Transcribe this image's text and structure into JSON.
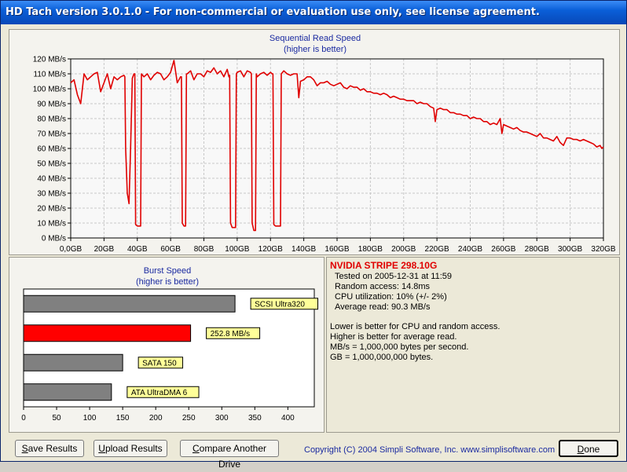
{
  "window": {
    "title": "HD Tach version 3.0.1.0  - For non-commercial or evaluation use only, see license agreement."
  },
  "sequential_chart": {
    "title_line1": "Sequential Read Speed",
    "title_line2": "(higher is better)"
  },
  "burst_chart": {
    "title_line1": "Burst Speed",
    "title_line2": "(higher is better)"
  },
  "stats": {
    "drive_name": "NVIDIA STRIPE 298.10G",
    "tested_on": "Tested on 2005-12-31 at 11:59",
    "random_access": "Random access: 14.8ms",
    "cpu": "CPU utilization: 10% (+/- 2%)",
    "average_read": "Average read: 90.3 MB/s",
    "note1": "Lower is better for CPU and random access.",
    "note2": "Higher is better for average read.",
    "note3": "MB/s = 1,000,000 bytes per second.",
    "note4": "GB = 1,000,000,000 bytes."
  },
  "buttons": {
    "save_prefix": "S",
    "save_rest": "ave Results",
    "upload_prefix": "U",
    "upload_rest": "pload Results",
    "compare_prefix": "C",
    "compare_rest": "ompare Another Drive",
    "done_prefix": "D",
    "done_rest": "one"
  },
  "footer": {
    "copyright": "Copyright (C) 2004 Simpli Software, Inc. www.simplisoftware.com"
  },
  "colors": {
    "series": "#e00000",
    "grid": "#c8c8c8",
    "gray_bar": "#808080",
    "label_bg": "#ffff99",
    "title_blue": "#1a2aa0"
  },
  "chart_data": [
    {
      "type": "line",
      "title": "Sequential Read Speed",
      "subtitle": "(higher is better)",
      "x_ticks": [
        "0,0GB",
        "20GB",
        "40GB",
        "60GB",
        "80GB",
        "100GB",
        "120GB",
        "140GB",
        "160GB",
        "180GB",
        "200GB",
        "220GB",
        "240GB",
        "260GB",
        "280GB",
        "300GB",
        "320GB"
      ],
      "y_ticks": [
        "0 MB/s",
        "10 MB/s",
        "20 MB/s",
        "30 MB/s",
        "40 MB/s",
        "50 MB/s",
        "60 MB/s",
        "70 MB/s",
        "80 MB/s",
        "90 MB/s",
        "100 MB/s",
        "110 MB/s",
        "120 MB/s"
      ],
      "xlim": [
        0,
        320
      ],
      "ylim": [
        0,
        120
      ],
      "grid": true,
      "series": [
        {
          "values": [
            [
              0,
              104
            ],
            [
              2,
              106
            ],
            [
              4,
              96
            ],
            [
              6,
              90
            ],
            [
              8,
              110
            ],
            [
              10,
              106
            ],
            [
              12,
              108
            ],
            [
              14,
              110
            ],
            [
              16,
              111
            ],
            [
              18,
              98
            ],
            [
              20,
              104
            ],
            [
              22,
              110
            ],
            [
              24,
              100
            ],
            [
              26,
              108
            ],
            [
              28,
              106
            ],
            [
              30,
              108
            ],
            [
              32,
              109
            ],
            [
              32.5,
              108
            ],
            [
              33,
              60
            ],
            [
              34,
              30
            ],
            [
              35,
              23
            ],
            [
              36,
              62
            ],
            [
              37,
              107
            ],
            [
              38,
              110
            ],
            [
              38.5,
              110
            ],
            [
              39,
              9
            ],
            [
              40,
              8
            ],
            [
              41,
              8
            ],
            [
              42,
              8
            ],
            [
              42.5,
              110
            ],
            [
              44,
              108
            ],
            [
              46,
              110
            ],
            [
              48,
              106
            ],
            [
              50,
              109
            ],
            [
              52,
              111
            ],
            [
              54,
              110
            ],
            [
              56,
              106
            ],
            [
              58,
              108
            ],
            [
              60,
              111
            ],
            [
              62,
              119
            ],
            [
              64,
              104
            ],
            [
              65,
              106
            ],
            [
              66,
              108
            ],
            [
              66.5,
              108
            ],
            [
              67,
              10
            ],
            [
              68,
              8
            ],
            [
              69,
              8
            ],
            [
              69.5,
              110
            ],
            [
              70,
              110
            ],
            [
              72,
              112
            ],
            [
              74,
              106
            ],
            [
              76,
              110
            ],
            [
              78,
              110
            ],
            [
              80,
              108
            ],
            [
              82,
              112
            ],
            [
              84,
              111
            ],
            [
              86,
              114
            ],
            [
              88,
              110
            ],
            [
              90,
              112
            ],
            [
              92,
              108
            ],
            [
              94,
              113
            ],
            [
              95,
              108
            ],
            [
              95.5,
              109
            ],
            [
              96,
              10
            ],
            [
              97,
              7
            ],
            [
              98,
              7
            ],
            [
              99,
              7
            ],
            [
              99.5,
              110
            ],
            [
              100,
              111
            ],
            [
              102,
              112
            ],
            [
              104,
              108
            ],
            [
              106,
              112
            ],
            [
              108,
              111
            ],
            [
              108.5,
              110
            ],
            [
              109,
              10
            ],
            [
              110,
              5
            ],
            [
              111,
              5
            ],
            [
              111.5,
              110
            ],
            [
              112,
              108
            ],
            [
              114,
              110
            ],
            [
              116,
              111
            ],
            [
              118,
              109
            ],
            [
              120,
              111
            ],
            [
              121,
              110
            ],
            [
              121.5,
              110
            ],
            [
              122,
              9
            ],
            [
              123,
              8
            ],
            [
              124,
              8
            ],
            [
              125,
              8
            ],
            [
              126,
              8
            ],
            [
              126.5,
              110
            ],
            [
              128,
              112
            ],
            [
              130,
              110
            ],
            [
              132,
              109
            ],
            [
              134,
              110
            ],
            [
              136,
              110
            ],
            [
              137,
              94
            ],
            [
              138,
              105
            ],
            [
              140,
              106
            ],
            [
              142,
              108
            ],
            [
              144,
              108
            ],
            [
              146,
              106
            ],
            [
              148,
              102
            ],
            [
              150,
              104
            ],
            [
              152,
              104
            ],
            [
              154,
              105
            ],
            [
              156,
              103
            ],
            [
              158,
              102
            ],
            [
              160,
              103
            ],
            [
              162,
              104
            ],
            [
              164,
              101
            ],
            [
              166,
              100
            ],
            [
              168,
              102
            ],
            [
              170,
              101
            ],
            [
              172,
              101
            ],
            [
              174,
              99
            ],
            [
              176,
              100
            ],
            [
              178,
              98
            ],
            [
              180,
              98
            ],
            [
              182,
              97
            ],
            [
              184,
              97
            ],
            [
              186,
              96
            ],
            [
              188,
              97
            ],
            [
              190,
              96
            ],
            [
              192,
              94
            ],
            [
              194,
              95
            ],
            [
              196,
              94
            ],
            [
              198,
              93
            ],
            [
              200,
              93
            ],
            [
              202,
              92
            ],
            [
              204,
              92
            ],
            [
              206,
              92
            ],
            [
              208,
              90
            ],
            [
              210,
              91
            ],
            [
              212,
              90
            ],
            [
              214,
              90
            ],
            [
              216,
              88
            ],
            [
              218,
              87
            ],
            [
              219,
              78
            ],
            [
              220,
              86
            ],
            [
              222,
              87
            ],
            [
              224,
              86
            ],
            [
              226,
              86
            ],
            [
              228,
              84
            ],
            [
              230,
              84
            ],
            [
              232,
              83
            ],
            [
              234,
              83
            ],
            [
              236,
              82
            ],
            [
              238,
              82
            ],
            [
              240,
              80
            ],
            [
              242,
              81
            ],
            [
              244,
              80
            ],
            [
              246,
              80
            ],
            [
              248,
              78
            ],
            [
              250,
              78
            ],
            [
              252,
              76
            ],
            [
              254,
              77
            ],
            [
              256,
              76
            ],
            [
              258,
              80
            ],
            [
              259,
              70
            ],
            [
              260,
              76
            ],
            [
              262,
              75
            ],
            [
              264,
              74
            ],
            [
              266,
              73
            ],
            [
              268,
              74
            ],
            [
              270,
              72
            ],
            [
              272,
              71
            ],
            [
              274,
              71
            ],
            [
              276,
              70
            ],
            [
              278,
              69
            ],
            [
              280,
              68
            ],
            [
              282,
              70
            ],
            [
              284,
              67
            ],
            [
              286,
              67
            ],
            [
              288,
              66
            ],
            [
              290,
              65
            ],
            [
              292,
              68
            ],
            [
              294,
              64
            ],
            [
              296,
              62
            ],
            [
              298,
              67
            ],
            [
              300,
              67
            ],
            [
              302,
              66
            ],
            [
              304,
              66
            ],
            [
              306,
              65
            ],
            [
              308,
              66
            ],
            [
              310,
              65
            ],
            [
              312,
              64
            ],
            [
              314,
              63
            ],
            [
              316,
              61
            ],
            [
              318,
              62
            ],
            [
              319,
              60
            ],
            [
              320,
              61
            ]
          ]
        }
      ]
    },
    {
      "type": "bar",
      "title": "Burst Speed",
      "subtitle": "(higher is better)",
      "orientation": "horizontal",
      "x_ticks": [
        "0",
        "50",
        "100",
        "150",
        "200",
        "250",
        "300",
        "350",
        "400"
      ],
      "xlim": [
        0,
        440
      ],
      "categories": [
        "SCSI Ultra320",
        "252.8 MB/s",
        "SATA 150",
        "ATA UltraDMA 6"
      ],
      "values": [
        320,
        252.8,
        150,
        133
      ],
      "bar_colors": [
        "#808080",
        "#ff0000",
        "#808080",
        "#808080"
      ]
    }
  ]
}
